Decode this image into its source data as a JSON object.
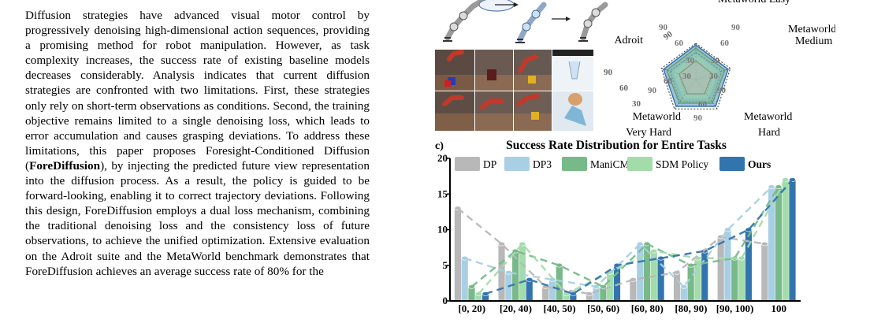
{
  "abstract": {
    "before_bold": "Diffusion strategies have advanced visual motor control by progressively denoising high-dimensional action sequences, providing a promising method for robot manipulation. However, as task complexity increases, the success rate of existing baseline models decreases considerably. Analysis indicates that current diffusion strategies are confronted with two limitations. First, these strategies only rely on short-term observations as conditions. Second, the training objective remains limited to a single denoising loss, which leads to error accumulation and causes grasping deviations. To address these limitations, this paper proposes Foresight-Conditioned Diffusion (",
    "bold": "ForeDiffusion",
    "after_bold": "), by injecting the predicted future view representation into the diffusion process. As a result, the policy is guided to be forward-looking, enabling it to correct trajectory deviations. Following this design, ForeDiffusion employs a dual loss mechanism, combining the traditional denoising loss and the consistency loss of future observations, to achieve the unified optimization. Extensive evaluation on the Adroit suite and the MetaWorld benchmark demonstrates that ForeDiffusion achieves an average success rate of 80% for the"
  },
  "radar": {
    "axis_labels": {
      "top": "Metaworld Easy",
      "upper_right_1": "Metaworld",
      "upper_right_2": "Medium",
      "left": "Adroit",
      "lower_left_1": "Metaworld",
      "lower_left_2": "Very Hard",
      "lower_right_1": "Metaworld",
      "lower_right_2": "Hard"
    },
    "ring_labels": [
      "30",
      "60",
      "90"
    ]
  },
  "chart_data": {
    "type": "bar",
    "panel_label": "c)",
    "title": "Success Rate Distribution for Entire Tasks",
    "ylim": [
      0,
      20
    ],
    "yticks": [
      "0",
      "5",
      "10",
      "15",
      "20"
    ],
    "categories": [
      "[0, 20)",
      "[20, 40)",
      "[40, 50)",
      "[50, 60)",
      "[60, 80)",
      "[80, 90)",
      "[90, 100)",
      "100"
    ],
    "series": [
      {
        "name": "DP",
        "color": "#b8b8b8",
        "values": [
          13,
          8,
          2,
          1,
          3,
          4,
          9,
          8
        ]
      },
      {
        "name": "DP3",
        "color": "#a9cfe4",
        "values": [
          6,
          4,
          3,
          2,
          8,
          2,
          10,
          16
        ]
      },
      {
        "name": "ManiCM",
        "color": "#78b98a",
        "values": [
          2,
          7,
          5,
          2,
          8,
          5,
          6,
          16
        ]
      },
      {
        "name": "SDM Policy",
        "color": "#a3dcab",
        "values": [
          1,
          8,
          1,
          4,
          7,
          6,
          6,
          17
        ]
      },
      {
        "name": "Ours",
        "color": "#3174ae",
        "values": [
          1,
          3,
          1,
          5,
          6,
          7,
          10,
          17
        ]
      }
    ]
  }
}
